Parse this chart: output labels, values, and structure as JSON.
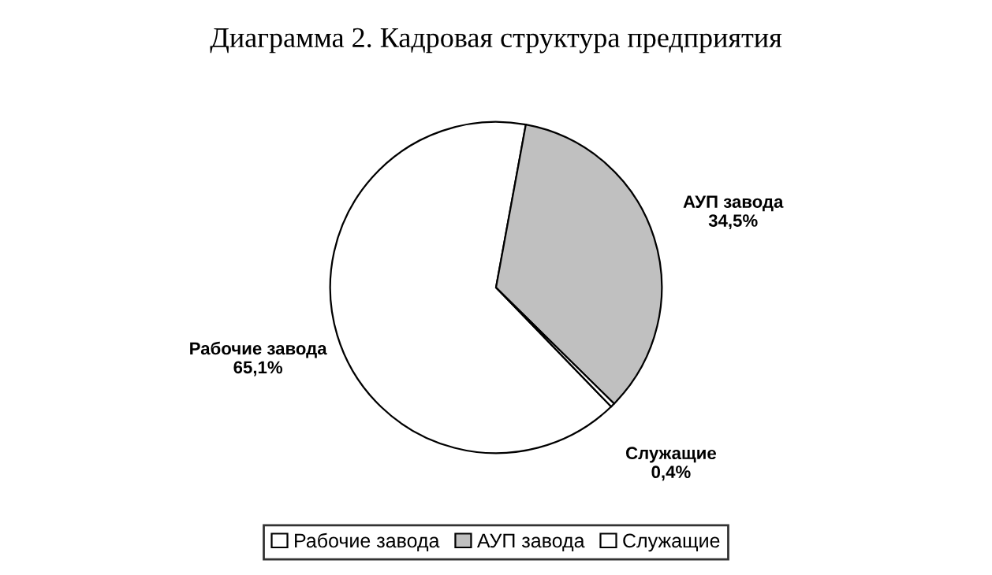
{
  "chart_data": {
    "type": "pie",
    "title": "Диаграмма 2. Кадровая структура предприятия",
    "categories": [
      "Рабочие завода",
      "АУП завода",
      "Служащие"
    ],
    "values": [
      65.1,
      34.5,
      0.4
    ],
    "value_labels": [
      "65,1%",
      "34,5%",
      "0,4%"
    ],
    "colors": [
      "#ffffff",
      "#c0c0c0",
      "#ffffff"
    ],
    "legend": "bottom"
  }
}
